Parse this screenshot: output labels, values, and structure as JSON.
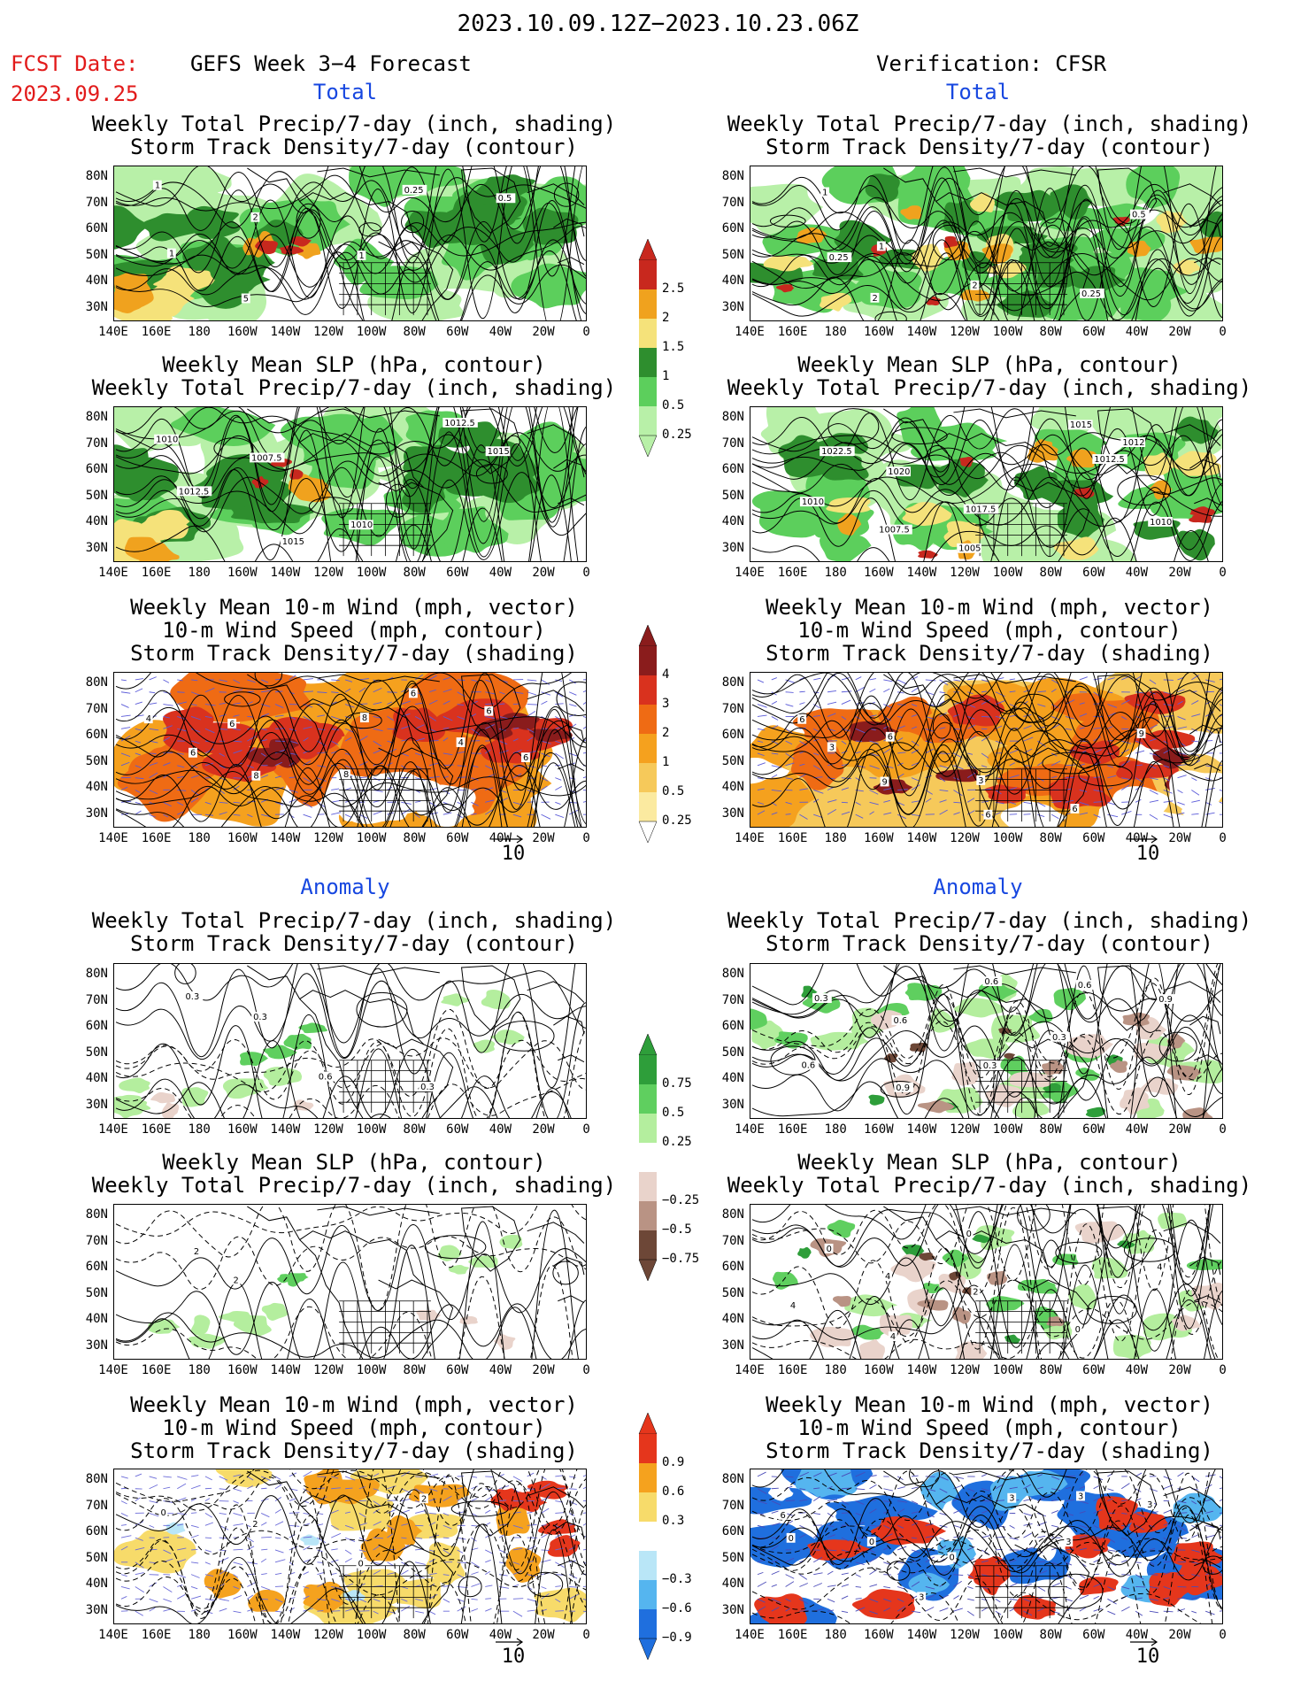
{
  "header": {
    "date_range": "2023.10.09.12Z−2023.10.23.06Z",
    "fcst_date_label": "FCST Date:",
    "fcst_date_value": "2023.09.25",
    "model_label": "GEFS Week 3−4 Forecast",
    "verification_label": "Verification: CFSR"
  },
  "sections": {
    "total_left": "Total",
    "total_right": "Total",
    "anomaly_left": "Anomaly",
    "anomaly_right": "Anomaly"
  },
  "panel_titles": {
    "precip_storm": "Weekly Total Precip/7-day (inch, shading)\nStorm Track Density/7-day (contour)",
    "slp_precip": "Weekly Mean SLP (hPa, contour)\nWeekly Total Precip/7-day (inch, shading)",
    "wind_storm": "Weekly Mean 10-m Wind (mph, vector)\n10-m Wind Speed (mph, contour)\nStorm Track Density/7-day (shading)"
  },
  "axes": {
    "lat_ticks": [
      "80N",
      "70N",
      "60N",
      "50N",
      "40N",
      "30N"
    ],
    "lon_ticks": [
      "140E",
      "160E",
      "180",
      "160W",
      "140W",
      "120W",
      "100W",
      "80W",
      "60W",
      "40W",
      "20W",
      "0"
    ]
  },
  "vector_reference": "10",
  "colorbars": {
    "precip_total": {
      "labels": [
        "2.5",
        "2",
        "1.5",
        "1",
        "0.5",
        "0.25"
      ],
      "colors": [
        "#c8281e",
        "#f0a21e",
        "#f5e27a",
        "#2e8e2e",
        "#5ccf5c",
        "#b8f0a8"
      ]
    },
    "storm_total": {
      "labels": [
        "4",
        "3",
        "2",
        "1",
        "0.5",
        "0.25"
      ],
      "colors": [
        "#8a1c1c",
        "#d9321e",
        "#ef6b14",
        "#f5a11e",
        "#f6c95a",
        "#fbeaa0"
      ]
    },
    "precip_anom": {
      "labels": [
        "0.75",
        "0.5",
        "0.25",
        "−0.25",
        "−0.5",
        "−0.75"
      ],
      "colors": [
        "#2e9e3a",
        "#5fcf5f",
        "#b4ee9e",
        "#e9d3cb",
        "#b99384",
        "#6d4737"
      ]
    },
    "storm_anom": {
      "labels": [
        "0.9",
        "0.6",
        "0.3",
        "−0.3",
        "−0.6",
        "−0.9"
      ],
      "colors": [
        "#e5361c",
        "#f5a21e",
        "#f7db6a",
        "#b9e6f7",
        "#55b5ef",
        "#1f6fde"
      ]
    },
    "anom_neutral_color": "#ffffff"
  },
  "contour_labels": {
    "L1": [
      "1",
      "2",
      "1",
      "0.25",
      "0.5",
      "1",
      "5"
    ],
    "R1": [
      "1",
      "1",
      "2",
      "0.25",
      "0.5",
      "0.25",
      "2"
    ],
    "L2": [
      "1010",
      "1007.5",
      "1010",
      "1012.5",
      "1015",
      "1012.5",
      "1015"
    ],
    "R2": [
      "1022.5",
      "1020",
      "1017.5",
      "1015",
      "1012",
      "1010",
      "1007.5",
      "1005",
      "1012.5",
      "1010"
    ],
    "L3": [
      "4",
      "6",
      "8",
      "6",
      "6",
      "6",
      "8",
      "8",
      "4",
      "6"
    ],
    "R3": [
      "6",
      "6",
      "3",
      "6",
      "9",
      "3",
      "9",
      "6"
    ],
    "L4": [
      "0.3",
      "0.3",
      "0.6",
      "0.3"
    ],
    "R4": [
      "0.3",
      "0.6",
      "0.3",
      "0.6",
      "0.9",
      "0.6",
      "0.9",
      "0.6",
      "0.3"
    ],
    "L5": [
      "2",
      "2"
    ],
    "R5": [
      "0",
      "4",
      "2",
      "0",
      "4",
      "4",
      "4",
      "0"
    ],
    "L6": [
      "0",
      "2",
      "0",
      "2"
    ],
    "R6": [
      "6",
      "0",
      "0",
      "3",
      "3",
      "0",
      "3",
      "3",
      "3"
    ]
  }
}
